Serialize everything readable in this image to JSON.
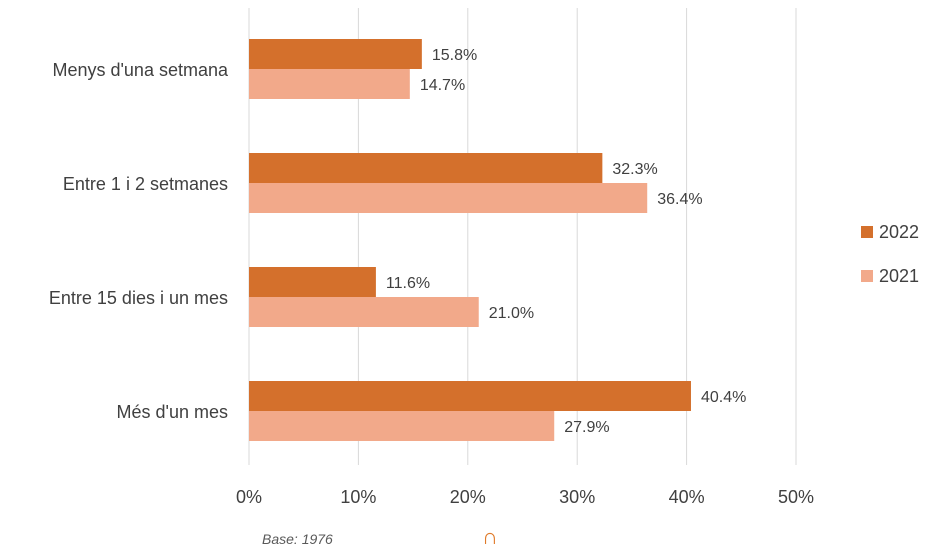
{
  "chart_data": {
    "type": "bar",
    "orientation": "horizontal",
    "categories": [
      "Menys d'una setmana",
      "Entre 1 i 2 setmanes",
      "Entre 15 dies i un mes",
      "Més d'un mes"
    ],
    "series": [
      {
        "name": "2022",
        "values": [
          15.8,
          32.3,
          11.6,
          40.4
        ],
        "color": "#d4702c"
      },
      {
        "name": "2021",
        "values": [
          14.7,
          36.4,
          21.0,
          27.9
        ],
        "color": "#f2a98a"
      }
    ],
    "data_labels": [
      [
        "15.8%",
        "32.3%",
        "11.6%",
        "40.4%"
      ],
      [
        "14.7%",
        "36.4%",
        "21.0%",
        "27.9%"
      ]
    ],
    "x_ticks": [
      "0%",
      "10%",
      "20%",
      "30%",
      "40%",
      "50%"
    ],
    "xlim": [
      0,
      50
    ],
    "grid": true,
    "legend_position": "right",
    "title": "",
    "xlabel": "",
    "ylabel": ""
  },
  "footnote": "Base: 1976",
  "mark_glyph": "∩"
}
